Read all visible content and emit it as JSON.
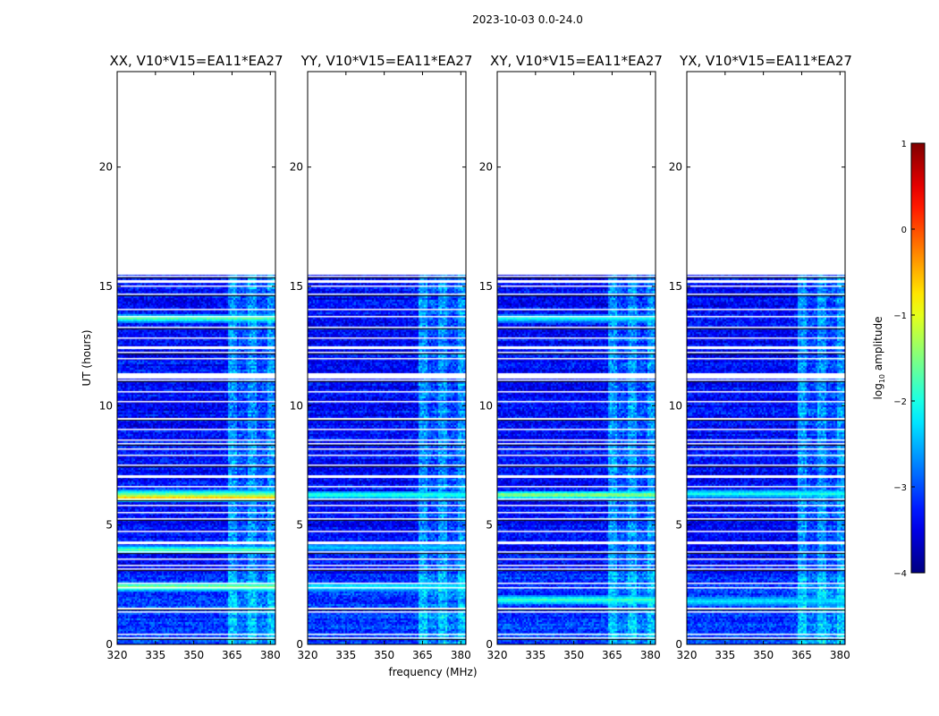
{
  "figure": {
    "suptitle": "2023-10-03 0.0-24.0",
    "xlabel": "frequency (MHz)",
    "ylabel": "UT (hours)",
    "colorbar": {
      "label_prefix": "log",
      "label_sub": "10",
      "label_suffix": " amplitude",
      "ticks": [
        "1",
        "0",
        "−1",
        "−2",
        "−3",
        "−4"
      ],
      "range": [
        -4,
        1
      ],
      "colormap": "jet"
    }
  },
  "chart_data": {
    "type": "heatmap",
    "xlim": [
      320,
      382
    ],
    "ylim": [
      0,
      24
    ],
    "xticks": [
      "320",
      "335",
      "350",
      "365",
      "380"
    ],
    "xtick_values": [
      320,
      335,
      350,
      365,
      380
    ],
    "yticks": [
      "0",
      "5",
      "10",
      "15",
      "20"
    ],
    "ytick_values": [
      0,
      5,
      10,
      15,
      20
    ],
    "data_end_hour": 15.5,
    "rfi_band_mhz": [
      363,
      381
    ],
    "flagged_gaps_hours": [
      0.3,
      0.45,
      1.4,
      1.55,
      2.4,
      2.6,
      3.2,
      3.35,
      3.6,
      3.9,
      4.3,
      4.75,
      5.3,
      5.55,
      5.85,
      6.1,
      6.65,
      7.1,
      7.55,
      7.95,
      8.2,
      8.45,
      8.6,
      9.05,
      9.5,
      10.2,
      10.6,
      11.1,
      11.35,
      12.0,
      12.25,
      12.5,
      12.85,
      13.3,
      13.75,
      14.05,
      14.7,
      15.05,
      15.25,
      15.45
    ],
    "panels": [
      {
        "title": "XX, V10*V15=EA11*EA27",
        "pol": "XX",
        "bright_hours": [
          6.2,
          6.35,
          13.7,
          2.45,
          4.0
        ],
        "peak_log_amplitude": -0.5
      },
      {
        "title": "YY, V10*V15=EA11*EA27",
        "pol": "YY",
        "bright_hours": [
          6.3,
          2.45,
          4.1
        ],
        "peak_log_amplitude": -1.8
      },
      {
        "title": "XY, V10*V15=EA11*EA27",
        "pol": "XY",
        "bright_hours": [
          6.3,
          1.9,
          13.7
        ],
        "peak_log_amplitude": -1.2
      },
      {
        "title": "YX, V10*V15=EA11*EA27",
        "pol": "YX",
        "bright_hours": [
          6.35,
          1.85
        ],
        "peak_log_amplitude": -1.9
      }
    ]
  }
}
